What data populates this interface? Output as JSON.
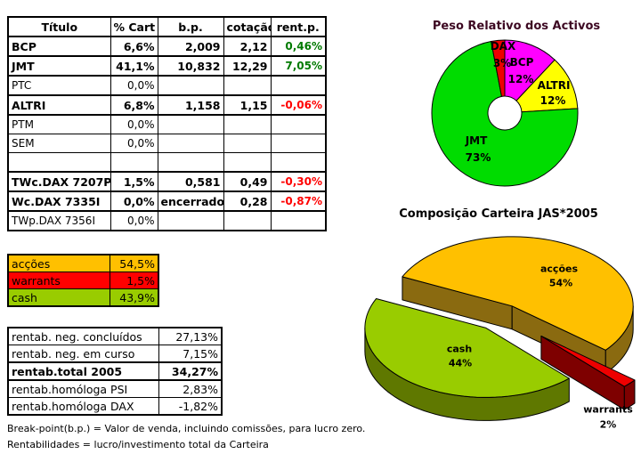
{
  "holdings_table": {
    "headers": [
      "Título",
      "% Cart",
      "b.p.",
      "cotação",
      "rent.p."
    ],
    "rows": [
      {
        "titulo": "BCP",
        "cart": "6,6%",
        "bp": "2,009",
        "cot": "2,12",
        "rent": "0,46%",
        "bold": true,
        "rent_class": "pos"
      },
      {
        "titulo": "JMT",
        "cart": "41,1%",
        "bp": "10,832",
        "cot": "12,29",
        "rent": "7,05%",
        "bold": true,
        "rent_class": "pos"
      },
      {
        "titulo": "PTC",
        "cart": "0,0%",
        "bp": "",
        "cot": "",
        "rent": "",
        "bold": false,
        "rent_class": ""
      },
      {
        "titulo": "ALTRI",
        "cart": "6,8%",
        "bp": "1,158",
        "cot": "1,15",
        "rent": "-0,06%",
        "bold": true,
        "rent_class": "neg"
      },
      {
        "titulo": "PTM",
        "cart": "0,0%",
        "bp": "",
        "cot": "",
        "rent": "",
        "bold": false,
        "rent_class": ""
      },
      {
        "titulo": "SEM",
        "cart": "0,0%",
        "bp": "",
        "cot": "",
        "rent": "",
        "bold": false,
        "rent_class": ""
      },
      {
        "titulo": "",
        "cart": "",
        "bp": "",
        "cot": "",
        "rent": "",
        "bold": false,
        "rent_class": ""
      },
      {
        "titulo": "TWc.DAX 7207P",
        "cart": "1,5%",
        "bp": "0,581",
        "cot": "0,49",
        "rent": "-0,30%",
        "bold": true,
        "rent_class": "neg"
      },
      {
        "titulo": "Wc.DAX 7335I",
        "cart": "0,0%",
        "bp": "encerrado",
        "cot": "0,28",
        "rent": "-0,87%",
        "bold": true,
        "rent_class": "neg"
      },
      {
        "titulo": "TWp.DAX 7356I",
        "cart": "0,0%",
        "bp": "",
        "cot": "",
        "rent": "",
        "bold": false,
        "rent_class": ""
      }
    ]
  },
  "allocation_table": {
    "rows": [
      {
        "label": "acções",
        "value": "54,5%",
        "bg": "#FFC000"
      },
      {
        "label": "warrants",
        "value": "1,5%",
        "bg": "#FF0000"
      },
      {
        "label": "cash",
        "value": "43,9%",
        "bg": "#99CC00"
      }
    ]
  },
  "returns_table": {
    "rows": [
      {
        "label": "rentab. neg. concluídos",
        "value": "27,13%",
        "bold": false
      },
      {
        "label": "rentab. neg. em curso",
        "value": "7,15%",
        "bold": false
      },
      {
        "label": "rentab.total 2005",
        "value": "34,27%",
        "bold": true
      },
      {
        "label": "rentab.homóloga PSI",
        "value": "2,83%",
        "bold": false
      },
      {
        "label": "rentab.homóloga DAX",
        "value": "-1,82%",
        "bold": false
      }
    ]
  },
  "footnotes": [
    "Break-point(b.p.) = Valor de venda, incluindo comissões, para lucro zero.",
    "Rentabilidades = lucro/investimento total da Carteira"
  ],
  "chart_data": [
    {
      "type": "pie",
      "variant": "donut",
      "title": "Peso Relativo dos Activos",
      "title_color": "#3D0822",
      "labels": [
        "BCP",
        "ALTRI",
        "JMT",
        "DAX"
      ],
      "values": [
        12,
        12,
        73,
        3
      ],
      "pct_labels": [
        "12%",
        "12%",
        "73%",
        "3%"
      ],
      "colors": [
        "#FF00FF",
        "#FFFF00",
        "#00DC00",
        "#EE0000"
      ],
      "start_angle_deg": 90,
      "direction": "clockwise",
      "hole_ratio": 0.23,
      "legend": "none"
    },
    {
      "type": "pie",
      "variant": "3d-exploded",
      "title": "Composição Carteira JAS*2005",
      "title_color": "#000000",
      "labels": [
        "acções",
        "warrants",
        "cash"
      ],
      "values": [
        54,
        2,
        44
      ],
      "pct_labels": [
        "54%",
        "2%",
        "44%"
      ],
      "colors": [
        "#FFC000",
        "#EE0000",
        "#99CC00"
      ],
      "side_colors": [
        "#8A6A10",
        "#7E0000",
        "#5F7800"
      ],
      "start_angle_deg": 155,
      "direction": "clockwise",
      "legend": "none"
    }
  ]
}
